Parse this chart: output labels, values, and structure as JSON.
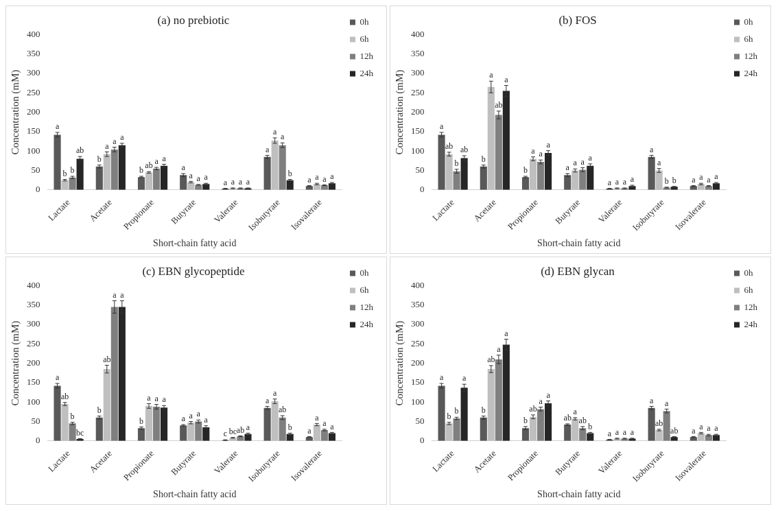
{
  "chart_data": [
    {
      "type": "bar",
      "title": "(a) no prebiotic",
      "xlabel": "Short-chain fatty acid",
      "ylabel": "Concentration (mM)",
      "categories": [
        "Lactate",
        "Acetate",
        "Propionate",
        "Butyrate",
        "Valerate",
        "Isobutyrate",
        "Isovalerate"
      ],
      "ylim": [
        0,
        400
      ],
      "yticks": [
        0,
        50,
        100,
        150,
        200,
        250,
        300,
        350,
        400
      ],
      "grid": false,
      "legend": "right",
      "series": [
        {
          "name": "0h",
          "color": "#595959",
          "values": [
            142,
            60,
            33,
            38,
            3,
            85,
            10
          ],
          "errors": [
            6,
            4,
            2,
            4,
            1,
            4,
            1
          ],
          "value_labels": [
            "a",
            "b",
            "b",
            "a",
            "a",
            "a",
            "a"
          ]
        },
        {
          "name": "6h",
          "color": "#bfbfbf",
          "values": [
            25,
            92,
            45,
            20,
            4,
            127,
            15
          ],
          "errors": [
            2,
            6,
            2,
            2,
            1,
            7,
            2
          ],
          "value_labels": [
            "b",
            "a",
            "ab",
            "a",
            "a",
            "a",
            "a"
          ]
        },
        {
          "name": "12h",
          "color": "#7f7f7f",
          "values": [
            32,
            104,
            55,
            13,
            4,
            115,
            12
          ],
          "errors": [
            3,
            6,
            3,
            1,
            1,
            6,
            1
          ],
          "value_labels": [
            "b",
            "a",
            "a",
            "a",
            "a",
            "a",
            "a"
          ]
        },
        {
          "name": "24h",
          "color": "#262626",
          "values": [
            80,
            115,
            62,
            15,
            4,
            25,
            17
          ],
          "errors": [
            6,
            5,
            4,
            2,
            1,
            2,
            2
          ],
          "value_labels": [
            "ab",
            "a",
            "a",
            "a",
            "a",
            "b",
            "a"
          ]
        }
      ]
    },
    {
      "type": "bar",
      "title": "(b) FOS",
      "xlabel": "Short-chain fatty acid",
      "ylabel": "Concentration (mM)",
      "categories": [
        "Lactate",
        "Acetate",
        "Propionate",
        "Butyrate",
        "Valerate",
        "Isobutyrate",
        "Isovalerate"
      ],
      "ylim": [
        0,
        400
      ],
      "yticks": [
        0,
        50,
        100,
        150,
        200,
        250,
        300,
        350,
        400
      ],
      "grid": false,
      "legend": "right",
      "series": [
        {
          "name": "0h",
          "color": "#595959",
          "values": [
            142,
            60,
            33,
            38,
            3,
            85,
            10
          ],
          "errors": [
            6,
            4,
            2,
            4,
            1,
            4,
            1
          ],
          "value_labels": [
            "a",
            "b",
            "b",
            "a",
            "a",
            "a",
            "a"
          ]
        },
        {
          "name": "6h",
          "color": "#bfbfbf",
          "values": [
            92,
            265,
            80,
            50,
            4,
            50,
            15
          ],
          "errors": [
            5,
            15,
            5,
            4,
            1,
            5,
            2
          ],
          "value_labels": [
            "ab",
            "a",
            "a",
            "a",
            "a",
            "a",
            "a"
          ]
        },
        {
          "name": "12h",
          "color": "#7f7f7f",
          "values": [
            48,
            193,
            72,
            52,
            4,
            6,
            10
          ],
          "errors": [
            5,
            10,
            5,
            5,
            1,
            1,
            1
          ],
          "value_labels": [
            "b",
            "ab",
            "a",
            "a",
            "a",
            "b",
            "a"
          ]
        },
        {
          "name": "24h",
          "color": "#262626",
          "values": [
            82,
            255,
            95,
            62,
            10,
            8,
            17
          ],
          "errors": [
            6,
            14,
            6,
            5,
            2,
            1,
            2
          ],
          "value_labels": [
            "ab",
            "a",
            "a",
            "a",
            "a",
            "b",
            "a"
          ]
        }
      ]
    },
    {
      "type": "bar",
      "title": "(c) EBN glycopeptide",
      "xlabel": "Short-chain fatty acid",
      "ylabel": "Concentration (mM)",
      "categories": [
        "Lactate",
        "Acetate",
        "Propionate",
        "Butyrate",
        "Valerate",
        "Isobutyrate",
        "Isovalerate"
      ],
      "ylim": [
        0,
        400
      ],
      "yticks": [
        0,
        50,
        100,
        150,
        200,
        250,
        300,
        350,
        400
      ],
      "grid": false,
      "legend": "right",
      "series": [
        {
          "name": "0h",
          "color": "#595959",
          "values": [
            142,
            60,
            33,
            40,
            2,
            85,
            10
          ],
          "errors": [
            6,
            4,
            3,
            2,
            1,
            4,
            1
          ],
          "value_labels": [
            "a",
            "b",
            "b",
            "a",
            "c",
            "a",
            "a"
          ]
        },
        {
          "name": "6h",
          "color": "#bfbfbf",
          "values": [
            95,
            185,
            90,
            47,
            8,
            102,
            42
          ],
          "errors": [
            4,
            10,
            6,
            3,
            1,
            6,
            3
          ],
          "value_labels": [
            "ab",
            "ab",
            "a",
            "a",
            "bc",
            "a",
            "a"
          ]
        },
        {
          "name": "12h",
          "color": "#7f7f7f",
          "values": [
            45,
            345,
            88,
            50,
            12,
            60,
            28
          ],
          "errors": [
            3,
            16,
            6,
            4,
            1,
            5,
            2
          ],
          "value_labels": [
            "b",
            "a",
            "a",
            "a",
            "ab",
            "ab",
            "a"
          ]
        },
        {
          "name": "24h",
          "color": "#262626",
          "values": [
            5,
            345,
            86,
            35,
            18,
            18,
            20
          ],
          "errors": [
            1,
            16,
            5,
            4,
            2,
            2,
            2
          ],
          "value_labels": [
            "bc",
            "a",
            "a",
            "a",
            "a",
            "b",
            "a"
          ]
        }
      ]
    },
    {
      "type": "bar",
      "title": "(d) EBN glycan",
      "xlabel": "Short-chain fatty acid",
      "ylabel": "Concentration (mM)",
      "categories": [
        "Lactate",
        "Acetate",
        "Propionate",
        "Butyrate",
        "Valerate",
        "Isobutyrate",
        "Isovalerate"
      ],
      "ylim": [
        0,
        400
      ],
      "yticks": [
        0,
        50,
        100,
        150,
        200,
        250,
        300,
        350,
        400
      ],
      "grid": false,
      "legend": "right",
      "series": [
        {
          "name": "0h",
          "color": "#595959",
          "values": [
            142,
            60,
            33,
            42,
            3,
            85,
            10
          ],
          "errors": [
            6,
            4,
            4,
            2,
            1,
            4,
            1
          ],
          "value_labels": [
            "a",
            "b",
            "b",
            "ab",
            "a",
            "a",
            "a"
          ]
        },
        {
          "name": "6h",
          "color": "#bfbfbf",
          "values": [
            45,
            185,
            62,
            57,
            6,
            28,
            20
          ],
          "errors": [
            3,
            9,
            5,
            3,
            1,
            2,
            2
          ],
          "value_labels": [
            "b",
            "ab",
            "ab",
            "a",
            "a",
            "ab",
            "a"
          ]
        },
        {
          "name": "12h",
          "color": "#7f7f7f",
          "values": [
            58,
            210,
            82,
            33,
            6,
            77,
            15
          ],
          "errors": [
            3,
            11,
            5,
            4,
            1,
            5,
            2
          ],
          "value_labels": [
            "b",
            "a",
            "a",
            "ab",
            "a",
            "a",
            "a"
          ]
        },
        {
          "name": "24h",
          "color": "#262626",
          "values": [
            137,
            248,
            97,
            20,
            6,
            10,
            15
          ],
          "errors": [
            9,
            14,
            6,
            2,
            1,
            1,
            2
          ],
          "value_labels": [
            "a",
            "a",
            "a",
            "b",
            "a",
            "ab",
            "a"
          ]
        }
      ]
    }
  ]
}
